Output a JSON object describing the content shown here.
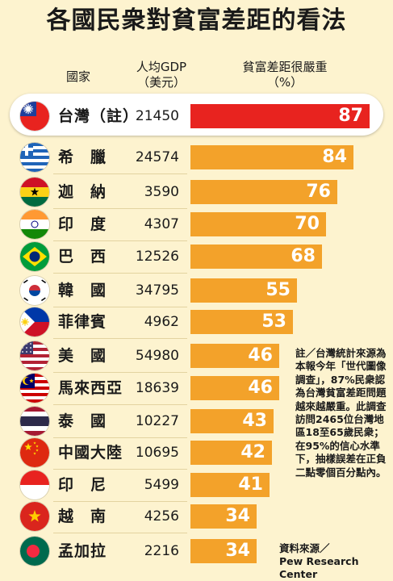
{
  "title": "各國民衆對貧富差距的看法",
  "headers": {
    "country": "國家",
    "gdp_line1": "人均GDP",
    "gdp_line2": "（美元）",
    "gap_line1": "貧富差距很嚴重",
    "gap_line2": "（%）"
  },
  "chart_data": {
    "type": "bar",
    "orientation": "horizontal",
    "title": "各國民衆對貧富差距的看法",
    "categories": [
      "台灣（註）",
      "希　臘",
      "迦　納",
      "印　度",
      "巴　西",
      "韓　國",
      "菲律賓",
      "美　國",
      "馬來西亞",
      "泰　國",
      "中國大陸",
      "印　尼",
      "越　南",
      "孟加拉"
    ],
    "gdp_per_capita_usd": [
      21450,
      24574,
      3590,
      4307,
      12526,
      34795,
      4962,
      54980,
      18639,
      10227,
      10695,
      5499,
      4256,
      2216
    ],
    "series": [
      {
        "name": "貧富差距很嚴重（%）",
        "values": [
          87,
          84,
          76,
          70,
          68,
          55,
          53,
          46,
          46,
          43,
          42,
          41,
          34,
          34
        ]
      }
    ],
    "xlim": [
      0,
      100
    ],
    "highlight_index": 0,
    "colors": {
      "highlight": "#e8231f",
      "default": "#f3a22a"
    }
  },
  "flags": [
    "taiwan",
    "greece",
    "ghana",
    "india",
    "brazil",
    "south-korea",
    "philippines",
    "usa",
    "malaysia",
    "thailand",
    "china",
    "indonesia",
    "vietnam",
    "bangladesh"
  ],
  "note": "註／台灣統計來源為本報今年「世代圖像調查」，87%民衆認為台灣貧富差距問題越來越嚴重。此調查訪問2465位台灣地區18至65歲民衆；在95%的信心水準下，抽樣誤差在正負二點零個百分點內。",
  "source_line1": "資料來源／",
  "source_line2": "Pew Research Center"
}
